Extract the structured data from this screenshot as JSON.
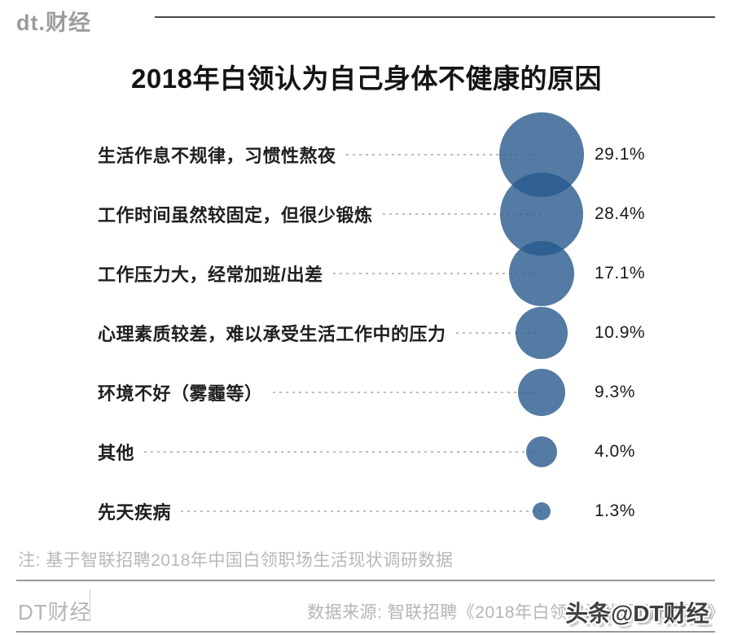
{
  "header": {
    "logo": "dt.财经"
  },
  "chart_data": {
    "type": "bubble",
    "title": "2018年白领认为自己身体不健康的原因",
    "categories": [
      "生活作息不规律，习惯性熬夜",
      "工作时间虽然较固定，但很少锻炼",
      "工作压力大，经常加班/出差",
      "心理素质较差，难以承受生活工作中的压力",
      "环境不好（雾霾等）",
      "其他",
      "先天疾病"
    ],
    "values": [
      29.1,
      28.4,
      17.1,
      10.9,
      9.3,
      4.0,
      1.3
    ],
    "value_labels": [
      "29.1%",
      "28.4%",
      "17.1%",
      "10.9%",
      "9.3%",
      "4.0%",
      "1.3%"
    ],
    "unit": "%",
    "legend": "none",
    "layout_hint": "horizontal category list with leader dots to area-scaled bubbles aligned in one column, value labels right of bubbles"
  },
  "colors": {
    "bubble_fill": "rgba(40,90,140,0.8)",
    "leader_dash": "#bdbdbd",
    "header_rule": "#4a4a4a"
  },
  "note": "注: 基于智联招聘2018年中国白领职场生活现状调研数据",
  "footer": {
    "brand": "DT财经",
    "source": "数据来源: 智联招聘《2018年白领生活状况调研报告》",
    "watermark": "头条@DT财经"
  }
}
